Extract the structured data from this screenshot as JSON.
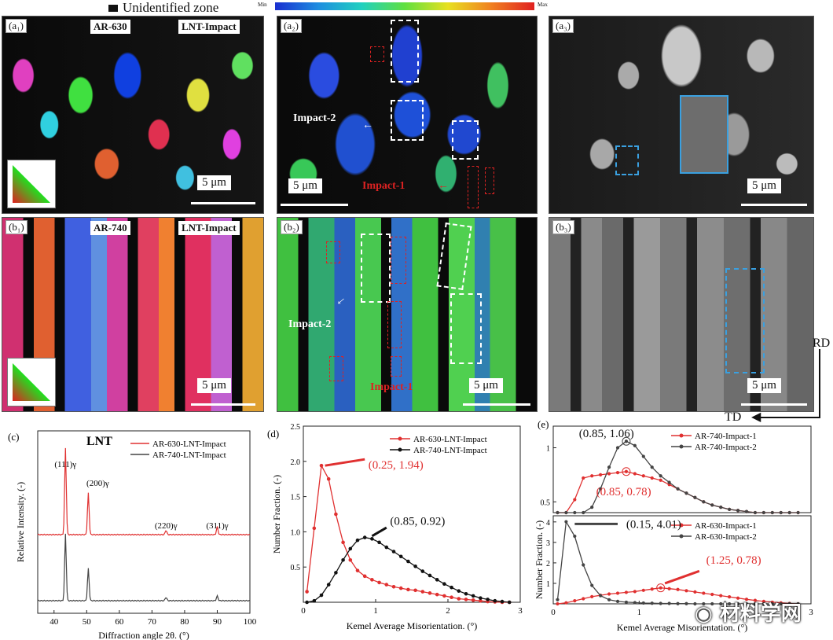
{
  "top_legend": {
    "unidentified_label": "Unidentified zone",
    "min_label": "Min",
    "max_label": "Max"
  },
  "panels": {
    "a1": {
      "label": "(a₁)",
      "tag_left": "AR-630",
      "tag_right": "LNT-Impact",
      "scale": "5 μm"
    },
    "a2": {
      "label": "(a₂)",
      "scale": "5 μm",
      "impact2": "Impact-2",
      "impact1": "Impact-1"
    },
    "a3": {
      "label": "(a₃)",
      "scale": "5 μm"
    },
    "b1": {
      "label": "(b₁)",
      "tag_left": "AR-740",
      "tag_right": "LNT-Impact",
      "scale": "5 μm"
    },
    "b2": {
      "label": "(b₂)",
      "scale": "5 μm",
      "impact2": "Impact-2",
      "impact1": "Impact-1"
    },
    "b3": {
      "label": "(b₃)",
      "scale": "5 μm"
    }
  },
  "axes_labels": {
    "rd": "RD",
    "td": "TD"
  },
  "watermark": "材料学网",
  "chart_data": [
    {
      "id": "c",
      "panel_label": "(c)",
      "type": "line",
      "title": "LNT",
      "xlabel": "Diffraction angle 2θ. (°)",
      "ylabel": "Relative Intensity. (-)",
      "xlim": [
        35,
        100
      ],
      "xticks": [
        40,
        50,
        60,
        70,
        80,
        90,
        100
      ],
      "legend": [
        "AR-630-LNT-Impact",
        "AR-740-LNT-Impact"
      ],
      "peaks": [
        {
          "label": "(111)γ",
          "x": 43.5
        },
        {
          "label": "(200)γ",
          "x": 50.5
        },
        {
          "label": "(220)γ",
          "x": 74.3
        },
        {
          "label": "(311)γ",
          "x": 90.0
        }
      ],
      "series": [
        {
          "name": "AR-630-LNT-Impact",
          "color": "#e03030",
          "peak_heights": [
            1.0,
            0.48,
            0.05,
            0.09
          ]
        },
        {
          "name": "AR-740-LNT-Impact",
          "color": "#444444",
          "peak_heights": [
            1.0,
            0.48,
            0.05,
            0.07
          ]
        }
      ]
    },
    {
      "id": "d",
      "panel_label": "(d)",
      "type": "line",
      "xlabel": "Kemel Average  Misorientation. (°)",
      "ylabel": "Number Fraction. (-)",
      "xlim": [
        0,
        3
      ],
      "ylim": [
        0,
        2.5
      ],
      "xticks": [
        0,
        1,
        2,
        3
      ],
      "yticks": [
        0.5,
        1.0,
        1.5,
        2.0,
        2.5
      ],
      "legend": [
        "AR-630-LNT-Impact",
        "AR-740-LNT-Impact"
      ],
      "annotations": [
        {
          "text": "(0.25, 1.94)",
          "color": "#e03030"
        },
        {
          "text": "(0.85, 0.92)",
          "color": "#111111"
        }
      ],
      "series": [
        {
          "name": "AR-630-LNT-Impact",
          "color": "#e03030",
          "x": [
            0.05,
            0.15,
            0.25,
            0.35,
            0.45,
            0.55,
            0.65,
            0.75,
            0.85,
            0.95,
            1.05,
            1.15,
            1.25,
            1.35,
            1.45,
            1.55,
            1.65,
            1.75,
            1.85,
            1.95,
            2.05,
            2.15,
            2.25,
            2.35,
            2.45,
            2.55,
            2.65,
            2.75,
            2.85
          ],
          "y": [
            0.15,
            1.05,
            1.94,
            1.75,
            1.25,
            0.85,
            0.6,
            0.45,
            0.37,
            0.32,
            0.28,
            0.25,
            0.22,
            0.2,
            0.18,
            0.17,
            0.15,
            0.13,
            0.11,
            0.09,
            0.07,
            0.05,
            0.04,
            0.03,
            0.02,
            0.01,
            0.005,
            0.0,
            0.0
          ]
        },
        {
          "name": "AR-740-LNT-Impact",
          "color": "#111111",
          "x": [
            0.05,
            0.15,
            0.25,
            0.35,
            0.45,
            0.55,
            0.65,
            0.75,
            0.85,
            0.95,
            1.05,
            1.15,
            1.25,
            1.35,
            1.45,
            1.55,
            1.65,
            1.75,
            1.85,
            1.95,
            2.05,
            2.15,
            2.25,
            2.35,
            2.45,
            2.55,
            2.65,
            2.75,
            2.85
          ],
          "y": [
            0.0,
            0.02,
            0.1,
            0.25,
            0.42,
            0.6,
            0.76,
            0.88,
            0.92,
            0.9,
            0.85,
            0.78,
            0.72,
            0.65,
            0.58,
            0.51,
            0.44,
            0.38,
            0.32,
            0.26,
            0.21,
            0.16,
            0.12,
            0.09,
            0.06,
            0.04,
            0.02,
            0.01,
            0.0
          ]
        }
      ]
    },
    {
      "id": "e_top",
      "panel_label": "(e)",
      "type": "line",
      "xlim": [
        0,
        3
      ],
      "ylim": [
        0.4,
        1.2
      ],
      "yticks": [
        0.5,
        1.0
      ],
      "legend": [
        "AR-740-Impact-1",
        "AR-740-Impact-2"
      ],
      "annotations": [
        {
          "text": "(0.85, 1.06)",
          "color": "#111111"
        },
        {
          "text": "(0.85, 0.78)",
          "color": "#e03030"
        }
      ],
      "series": [
        {
          "name": "AR-740-Impact-1",
          "color": "#e03030",
          "x": [
            0.05,
            0.15,
            0.25,
            0.35,
            0.45,
            0.55,
            0.65,
            0.75,
            0.85,
            0.95,
            1.05,
            1.15,
            1.25,
            1.35,
            1.45,
            1.55,
            1.65,
            1.75,
            1.85,
            1.95,
            2.05,
            2.15,
            2.25,
            2.35,
            2.45,
            2.55,
            2.65,
            2.75,
            2.85
          ],
          "y": [
            0.4,
            0.4,
            0.52,
            0.72,
            0.74,
            0.75,
            0.76,
            0.77,
            0.78,
            0.76,
            0.74,
            0.72,
            0.7,
            0.66,
            0.62,
            0.58,
            0.54,
            0.5,
            0.47,
            0.45,
            0.43,
            0.42,
            0.41,
            0.4,
            0.4,
            0.4,
            0.4,
            0.4,
            0.4
          ]
        },
        {
          "name": "AR-740-Impact-2",
          "color": "#444444",
          "x": [
            0.05,
            0.15,
            0.25,
            0.35,
            0.45,
            0.55,
            0.65,
            0.75,
            0.85,
            0.95,
            1.05,
            1.15,
            1.25,
            1.35,
            1.45,
            1.55,
            1.65,
            1.75,
            1.85,
            1.95,
            2.05,
            2.15,
            2.25,
            2.35,
            2.45,
            2.55,
            2.65,
            2.75,
            2.85
          ],
          "y": [
            0.4,
            0.4,
            0.4,
            0.4,
            0.45,
            0.62,
            0.82,
            1.0,
            1.06,
            1.02,
            0.92,
            0.82,
            0.74,
            0.68,
            0.62,
            0.58,
            0.54,
            0.5,
            0.47,
            0.45,
            0.43,
            0.42,
            0.41,
            0.4,
            0.4,
            0.4,
            0.4,
            0.4,
            0.4
          ]
        }
      ]
    },
    {
      "id": "e_bottom",
      "type": "line",
      "xlabel": "Kemel Average  Misorientation. (°)",
      "ylabel": "Number Fraction. (-)",
      "xlim": [
        0,
        3
      ],
      "ylim": [
        0,
        4.3
      ],
      "xticks": [
        0,
        1,
        2,
        3
      ],
      "yticks": [
        1,
        2,
        3,
        4
      ],
      "legend": [
        "AR-630-Impact-1",
        "AR-630-Impact-2"
      ],
      "annotations": [
        {
          "text": "(0.15, 4.01)",
          "color": "#111111"
        },
        {
          "text": "(1.25, 0.78)",
          "color": "#e03030"
        }
      ],
      "series": [
        {
          "name": "AR-630-Impact-1",
          "color": "#e03030",
          "x": [
            0.05,
            0.15,
            0.25,
            0.35,
            0.45,
            0.55,
            0.65,
            0.75,
            0.85,
            0.95,
            1.05,
            1.15,
            1.25,
            1.35,
            1.45,
            1.55,
            1.65,
            1.75,
            1.85,
            1.95,
            2.05,
            2.15,
            2.25,
            2.35,
            2.45,
            2.55,
            2.65,
            2.75,
            2.85
          ],
          "y": [
            0.0,
            0.05,
            0.15,
            0.25,
            0.35,
            0.42,
            0.48,
            0.52,
            0.56,
            0.6,
            0.66,
            0.72,
            0.78,
            0.74,
            0.7,
            0.64,
            0.58,
            0.52,
            0.46,
            0.4,
            0.34,
            0.28,
            0.22,
            0.17,
            0.12,
            0.08,
            0.05,
            0.02,
            0.0
          ]
        },
        {
          "name": "AR-630-Impact-2",
          "color": "#444444",
          "x": [
            0.05,
            0.15,
            0.25,
            0.35,
            0.45,
            0.55,
            0.65,
            0.75,
            0.85,
            0.95,
            1.05,
            1.15,
            1.25,
            1.35,
            1.45,
            1.55,
            1.65,
            1.75,
            1.85,
            1.95,
            2.05,
            2.15,
            2.25,
            2.35,
            2.45,
            2.55,
            2.65,
            2.75,
            2.85
          ],
          "y": [
            0.2,
            4.01,
            3.3,
            1.9,
            0.9,
            0.4,
            0.2,
            0.12,
            0.08,
            0.06,
            0.04,
            0.03,
            0.02,
            0.02,
            0.01,
            0.01,
            0.0,
            0.0,
            0.0,
            0.0,
            0.0,
            0.0,
            0.0,
            0.0,
            0.0,
            0.0,
            0.0,
            0.0,
            0.0
          ]
        }
      ]
    }
  ]
}
